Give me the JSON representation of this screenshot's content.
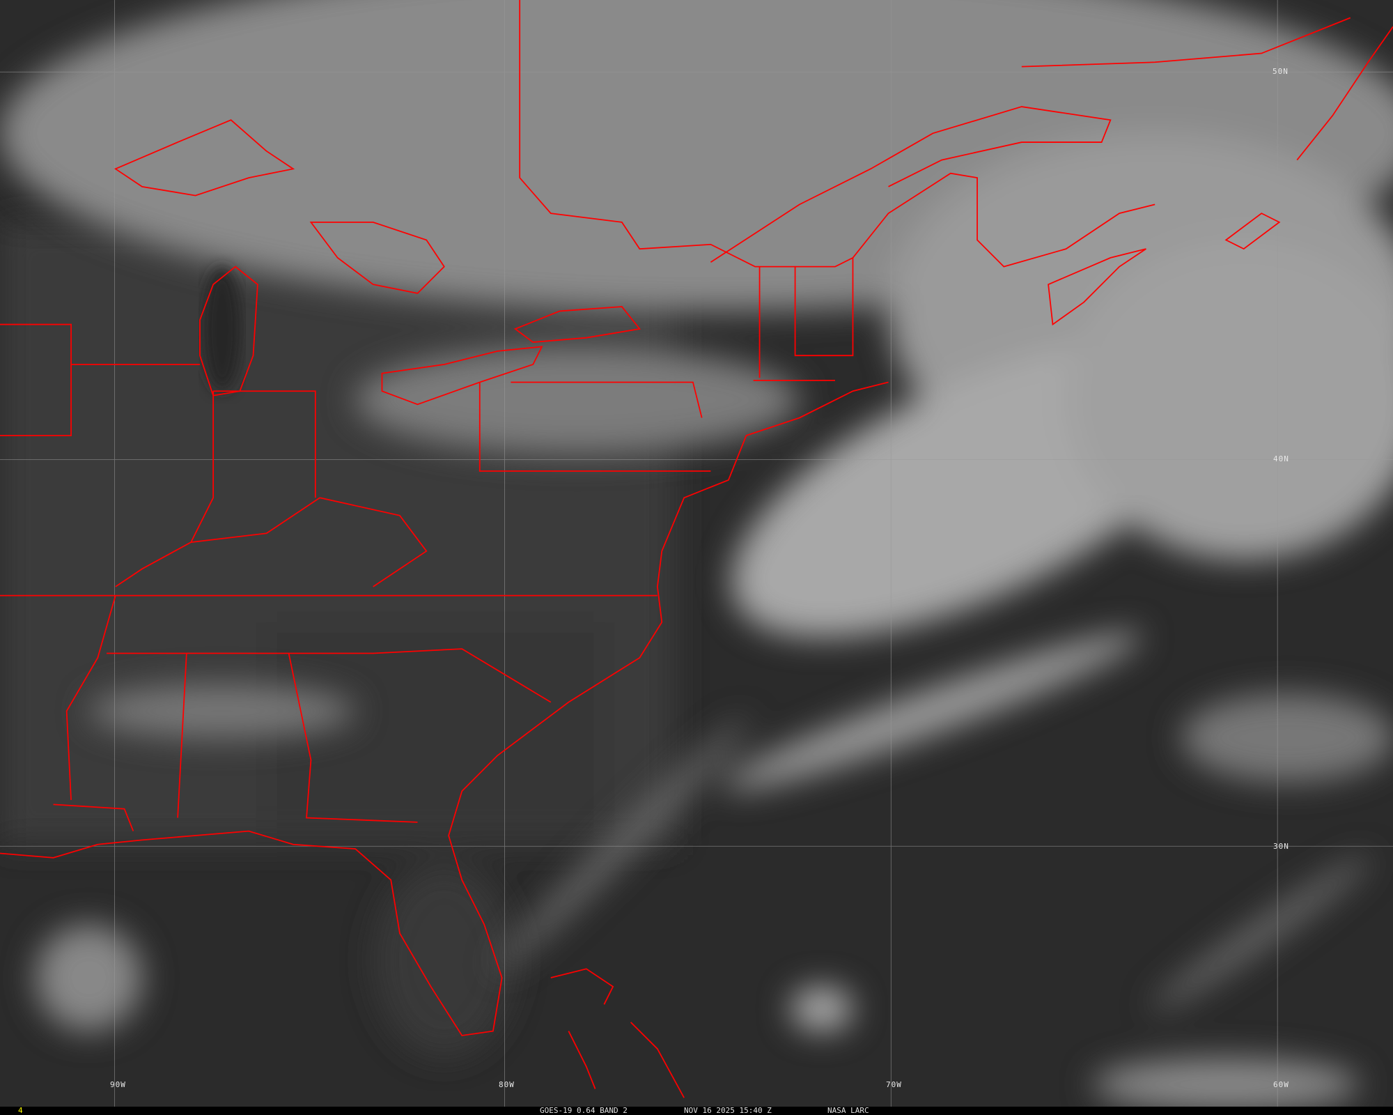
{
  "map": {
    "latitude_labels": [
      "50N",
      "40N",
      "30N"
    ],
    "longitude_labels": [
      "90W",
      "80W",
      "70W",
      "60W"
    ],
    "colors": {
      "borders": "#ff0000",
      "gridlines": "#9a9a9a",
      "background": "#2c2c2c",
      "frame_indicator": "#ffff00"
    }
  },
  "caption": {
    "frame": "4",
    "satellite_band": "GOES-19 0.64 BAND 2",
    "datetime": "NOV 16 2025 15:40 Z",
    "source": "NASA LARC"
  }
}
